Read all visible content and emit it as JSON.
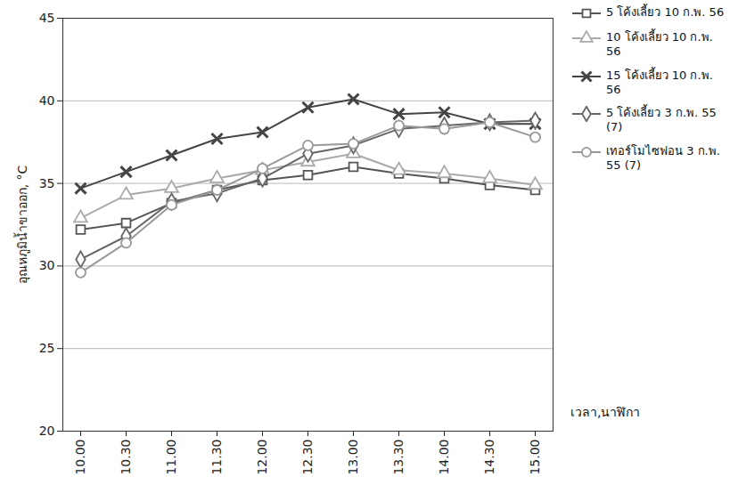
{
  "chart_data": {
    "type": "line",
    "x_label": "เวลา,นาฬิกา",
    "y_label": "อุณหภูมิน้ำขาออก, °C",
    "categories": [
      "10.00",
      "10.30",
      "11.00",
      "11.30",
      "12.00",
      "12.30",
      "13.00",
      "13.30",
      "14.00",
      "14.30",
      "15.00"
    ],
    "ylim": [
      20,
      45
    ],
    "yticks": [
      20,
      25,
      30,
      35,
      40,
      45
    ],
    "grid": true,
    "legend": "right",
    "series": [
      {
        "name": "5 โค้งเลี้ยว 10 ก.พ. 56",
        "color": "#555555",
        "marker": "square",
        "line_style": "solid",
        "values": [
          32.2,
          32.6,
          33.8,
          34.6,
          35.2,
          35.5,
          36.0,
          35.6,
          35.3,
          34.9,
          34.6
        ]
      },
      {
        "name": "10 โค้งเลี้ยว 10 ก.พ. 56",
        "color": "#aaaaaa",
        "marker": "triangle",
        "line_style": "solid",
        "values": [
          32.9,
          34.3,
          34.7,
          35.3,
          35.8,
          36.3,
          36.8,
          35.8,
          35.6,
          35.3,
          34.9
        ]
      },
      {
        "name": "15 โค้งเลี้ยว 10 ก.พ. 56",
        "color": "#444444",
        "marker": "times",
        "line_style": "solid",
        "values": [
          34.7,
          35.7,
          36.7,
          37.7,
          38.1,
          39.6,
          40.1,
          39.2,
          39.3,
          38.6,
          38.6
        ]
      },
      {
        "name": "5 โค้งเลี้ยว 3 ก.พ. 55 (7)",
        "color": "#666666",
        "marker": "diamond",
        "line_style": "solid",
        "values": [
          30.4,
          31.8,
          33.9,
          34.4,
          35.3,
          36.8,
          37.3,
          38.3,
          38.5,
          38.7,
          38.8
        ]
      },
      {
        "name": "เทอร์โมไซฟอน 3 ก.พ. 55 (7)",
        "color": "#999999",
        "marker": "circle",
        "line_style": "solid",
        "values": [
          29.6,
          31.4,
          33.7,
          34.6,
          35.9,
          37.3,
          37.4,
          38.5,
          38.3,
          38.7,
          37.8
        ]
      }
    ]
  }
}
